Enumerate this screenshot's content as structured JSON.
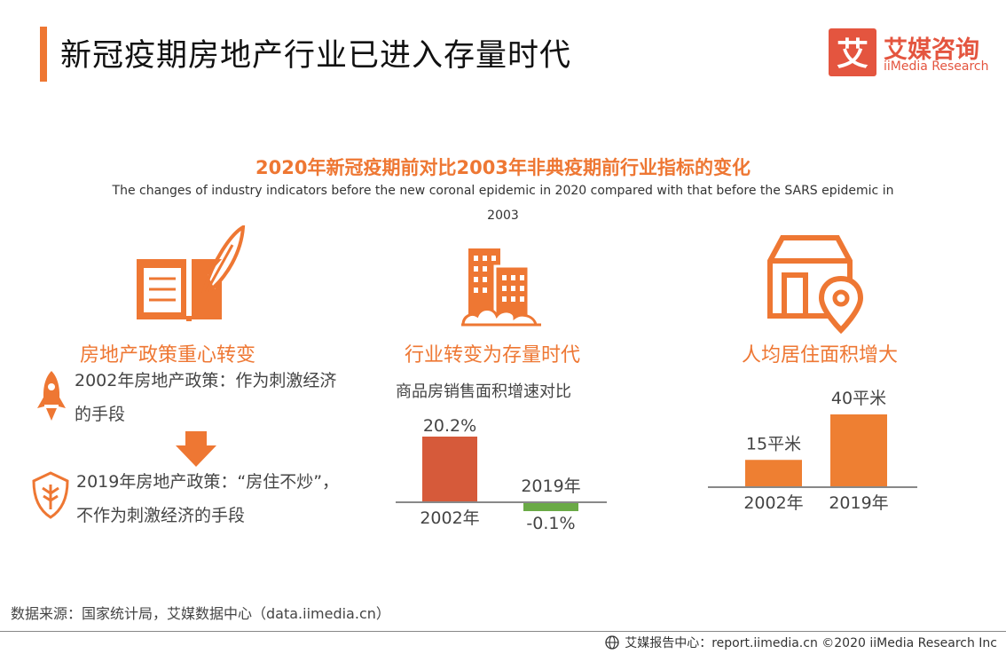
{
  "header": {
    "title": "新冠疫期房地产行业已进入存量时代",
    "logo_cn": "艾媒咨询",
    "logo_en": "iiMedia Research",
    "logo_glyph": "艾"
  },
  "subtitle": {
    "cn": "2020年新冠疫期前对比2003年非典疫期前行业指标的变化",
    "en": "The changes of industry indicators before the new coronal epidemic in 2020 compared with that before the SARS epidemic in 2003"
  },
  "panels": {
    "policy": {
      "heading": "房地产政策重心转变",
      "item_2002": "2002年房地产政策：作为刺激经济的手段",
      "item_2019": "2019年房地产政策：“房住不炒”，不作为刺激经济的手段",
      "icons": [
        "book-quill-icon",
        "rocket-icon",
        "arrow-down-icon",
        "shield-leaf-icon"
      ]
    },
    "stock": {
      "heading": "行业转变为存量时代",
      "caption": "商品房销售面积增速对比",
      "icon": "buildings-icon"
    },
    "area": {
      "heading": "人均居住面积增大",
      "icon": "house-location-icon"
    }
  },
  "chart_data": [
    {
      "type": "bar",
      "title": "商品房销售面积增速对比",
      "categories": [
        "2002年",
        "2019年"
      ],
      "values": [
        20.2,
        -0.1
      ],
      "value_labels": [
        "20.2%",
        "-0.1%"
      ],
      "unit": "%",
      "colors": [
        "#d65a3a",
        "#6aaa46"
      ]
    },
    {
      "type": "bar",
      "title": "",
      "categories": [
        "2002年",
        "2019年"
      ],
      "values": [
        15,
        40
      ],
      "value_labels": [
        "15平米",
        "40平米"
      ],
      "unit": "平米",
      "colors": [
        "#ee7f32",
        "#ee7f32"
      ]
    }
  ],
  "footer": {
    "source": "数据来源：国家统计局，艾媒数据中心（data.iimedia.cn）",
    "copyright": "艾媒报告中心：report.iimedia.cn  ©2020  iiMedia Research  Inc"
  },
  "colors": {
    "accent": "#ee7733",
    "brand": "#e4553f"
  }
}
